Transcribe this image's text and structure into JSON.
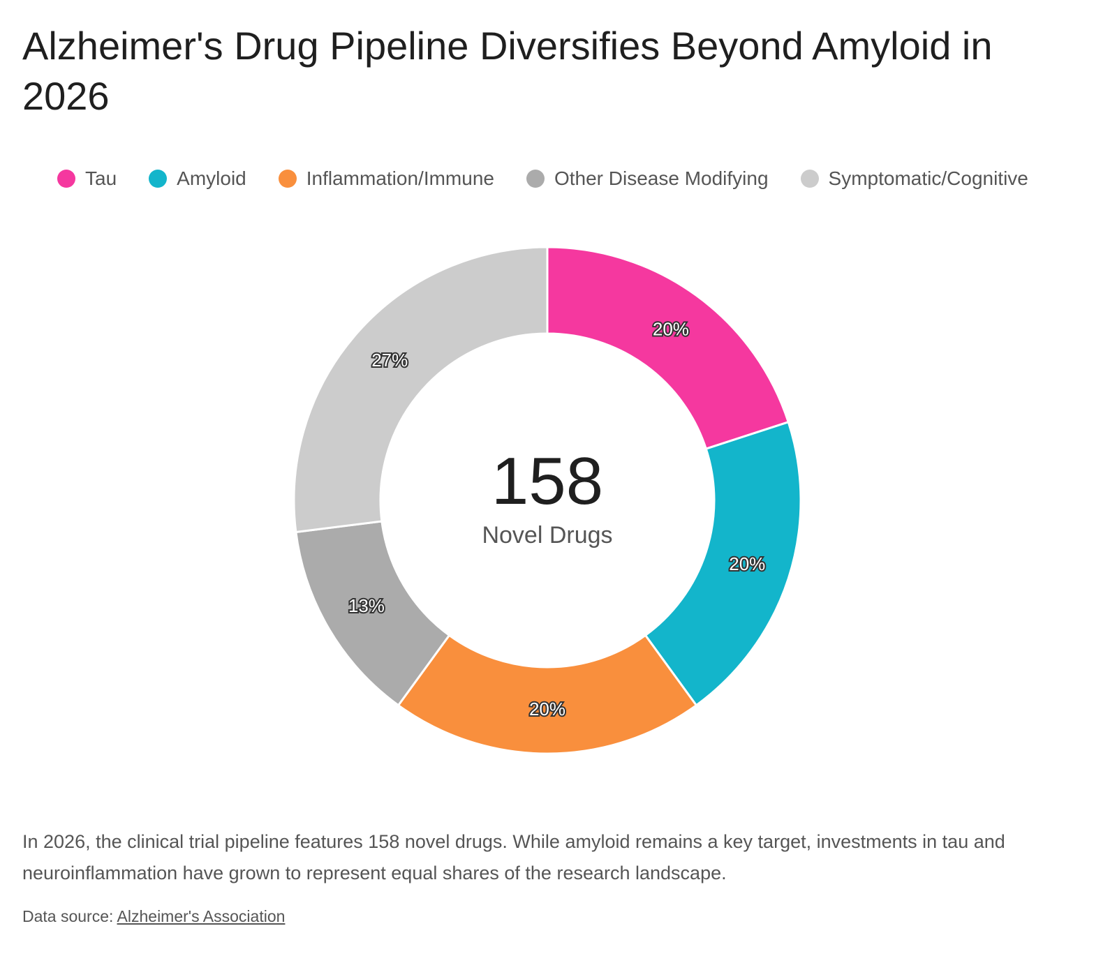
{
  "title": "Alzheimer's Drug Pipeline Diversifies Beyond Amyloid in 2026",
  "chart_data": {
    "type": "pie",
    "style": "donut",
    "start_angle": "top, clockwise",
    "legend_position": "top",
    "series": [
      {
        "name": "Tau",
        "value": 20,
        "label": "20%",
        "color": "#F5389F"
      },
      {
        "name": "Amyloid",
        "value": 20,
        "label": "20%",
        "color": "#13B5CB"
      },
      {
        "name": "Inflammation/Immune",
        "value": 20,
        "label": "20%",
        "color": "#F98F3D"
      },
      {
        "name": "Other Disease Modifying",
        "value": 13,
        "label": "13%",
        "color": "#ABABAB"
      },
      {
        "name": "Symptomatic/Cognitive",
        "value": 27,
        "label": "27%",
        "color": "#CCCCCC"
      }
    ],
    "center": {
      "value": "158",
      "label": "Novel Drugs"
    }
  },
  "description": "In 2026, the clinical trial pipeline features 158 novel drugs. While amyloid remains a key target, investments in tau and neuroinflammation have grown to represent equal shares of the research landscape.",
  "source": {
    "prefix": "Data source:",
    "link_text": "Alzheimer's Association"
  }
}
